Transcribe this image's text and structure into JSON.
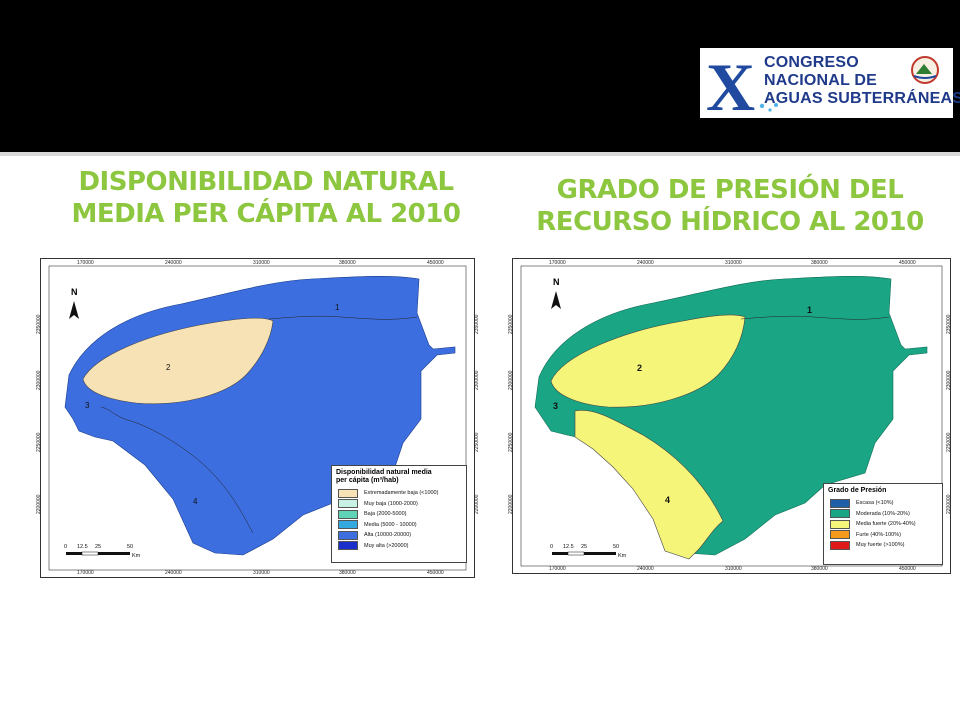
{
  "logo": {
    "letter": "X",
    "line1": "CONGRESO",
    "line2": "NACIONAL DE",
    "line3": "AGUAS SUBTERRÁNEAS"
  },
  "left": {
    "title_line1": "DISPONIBILIDAD NATURAL",
    "title_line2": "MEDIA PER CÁPITA AL 2010",
    "x_ticks": [
      "170000",
      "240000",
      "310000",
      "380000",
      "450000"
    ],
    "y_ticks": [
      "2350000",
      "2300000",
      "2250000",
      "2200000"
    ],
    "zones": [
      "1",
      "2",
      "3",
      "4"
    ],
    "north": "N",
    "legend_title_line1": "Disponibilidad natural media",
    "legend_title_line2": "per cápita  (m³/hab)",
    "legend": [
      {
        "label": "Extremadamente baja (<1000)",
        "color": "#f7e2b5"
      },
      {
        "label": "Muy baja (1000-2000)",
        "color": "#c8f2e4"
      },
      {
        "label": "Baja (2000-5000)",
        "color": "#5fd3b5"
      },
      {
        "label": "Media (5000 - 10000)",
        "color": "#33a9e0"
      },
      {
        "label": "Alta (10000-20000)",
        "color": "#3d6ee0"
      },
      {
        "label": "Muy alta (>20000)",
        "color": "#1a2fcc"
      }
    ],
    "scale": [
      "0",
      "12.5",
      "25",
      "50"
    ],
    "scale_unit": "Km"
  },
  "right": {
    "title_line1": "GRADO DE PRESIÓN DEL",
    "title_line2": "RECURSO HÍDRICO AL 2010",
    "x_ticks": [
      "170000",
      "240000",
      "310000",
      "380000",
      "450000"
    ],
    "y_ticks": [
      "2350000",
      "2300000",
      "2250000",
      "2200000"
    ],
    "zones": [
      "1",
      "2",
      "3",
      "4"
    ],
    "north": "N",
    "legend_title": "Grado de Presión",
    "legend": [
      {
        "label": "Escasa (<10%)",
        "color": "#1f5fa8"
      },
      {
        "label": "Moderada (10%-20%)",
        "color": "#1aa584"
      },
      {
        "label": "Media fuerte (20%-40%)",
        "color": "#f5f57a"
      },
      {
        "label": "Furte (40%-100%)",
        "color": "#f59a1a"
      },
      {
        "label": "Muy fuerte (>100%)",
        "color": "#e01a1a"
      }
    ],
    "scale": [
      "0",
      "12.5",
      "25",
      "50"
    ],
    "scale_unit": "Km"
  },
  "colors": {
    "title_green": "#8dc63f",
    "left_main": "#3d6ee0",
    "left_zone2": "#f7e2b5",
    "right_main": "#1aa584",
    "right_yellow": "#f5f57a"
  }
}
